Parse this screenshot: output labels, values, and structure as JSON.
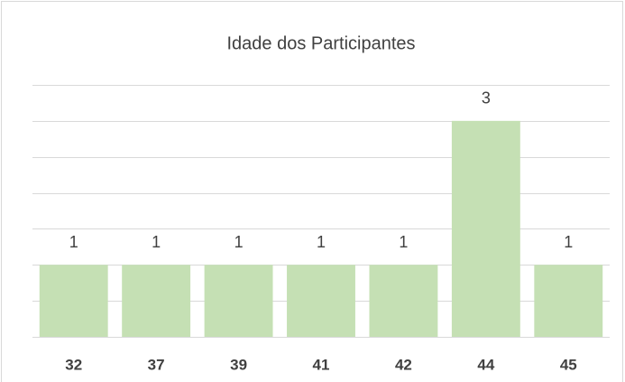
{
  "chart_data": {
    "type": "bar",
    "title": "Idade dos Participantes",
    "categories": [
      "32",
      "37",
      "39",
      "41",
      "42",
      "44",
      "45"
    ],
    "values": [
      1,
      1,
      1,
      1,
      1,
      3,
      1
    ],
    "color": "#c5e0b4",
    "ylim": [
      0,
      3.5
    ],
    "yticks": [
      0,
      0.5,
      1,
      1.5,
      2,
      2.5,
      3,
      3.5
    ],
    "grid": true,
    "ytick_labels": false,
    "data_labels": true
  }
}
